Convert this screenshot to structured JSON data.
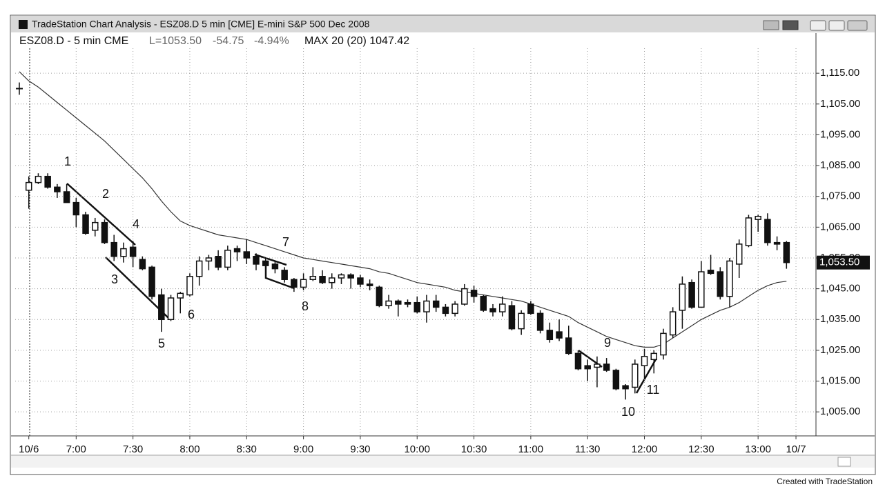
{
  "window_title": "TradeStation Chart Analysis - ESZ08.D 5 min [CME] E-mini S&P 500 Dec 2008",
  "footer": "Created with TradeStation",
  "chart_data": {
    "type": "candlestick",
    "title": "ESZ08.D - 5 min CME",
    "stats": [
      "L=1053.50",
      "-54.75",
      "-4.94%"
    ],
    "indicator": "MAX 20 (20) 1047.42",
    "categories": [
      null,
      "10/6",
      null,
      null,
      null,
      null,
      "7:00",
      null,
      null,
      null,
      null,
      null,
      "7:30",
      null,
      null,
      null,
      null,
      null,
      "8:00",
      null,
      null,
      null,
      null,
      null,
      "8:30",
      null,
      null,
      null,
      null,
      null,
      "9:00",
      null,
      null,
      null,
      null,
      null,
      "9:30",
      null,
      null,
      null,
      null,
      null,
      "10:00",
      null,
      null,
      null,
      null,
      null,
      "10:30",
      null,
      null,
      null,
      null,
      null,
      "11:00",
      null,
      null,
      null,
      null,
      null,
      "11:30",
      null,
      null,
      null,
      null,
      null,
      "12:00",
      null,
      null,
      null,
      null,
      null,
      "12:30",
      null,
      null,
      null,
      null,
      null,
      "13:00",
      null,
      null,
      null,
      "10/7"
    ],
    "open": [
      1110,
      1077,
      1079.5,
      1081.5,
      1078,
      1076.5,
      1073,
      1069,
      1064,
      1066.5,
      1060,
      1055.5,
      1058.5,
      1054.5,
      1052,
      1043,
      1035,
      1042,
      1043,
      1049,
      1054,
      1055.5,
      1052,
      1058,
      1057,
      1055.5,
      1054,
      1053,
      1051,
      1048,
      1045.5,
      1048,
      1049,
      1047,
      1048.5,
      1049.5,
      1048.5,
      1046.5,
      1045.5,
      1039.5,
      1041,
      1040.5,
      1040.5,
      1037.5,
      1041,
      1039,
      1037,
      1040,
      1044.5,
      1042.5,
      1038.5,
      1037.5,
      1039.5,
      1032,
      1040,
      1037,
      1031.5,
      1031,
      1029,
      1024,
      1020,
      1019.5,
      1020.5,
      1018.5,
      1013.5,
      1013,
      1020,
      1022,
      1023.5,
      1030,
      1038,
      1047,
      1039,
      1051,
      1050.5,
      1042.5,
      1053,
      1059,
      1067.5,
      1067.5,
      1060,
      1060,
      null
    ],
    "high": [
      1112,
      1081.5,
      1082.5,
      1082.5,
      1079,
      1079,
      1074.5,
      1070,
      1068,
      1067.5,
      1062.5,
      1060,
      1060.5,
      1055.5,
      1052.5,
      1045,
      1043,
      1044,
      1050,
      1055.5,
      1056,
      1057.5,
      1059,
      1059,
      1061,
      1056.5,
      1055,
      1054,
      1052,
      1048.5,
      1050,
      1052,
      1051,
      1050,
      1050,
      1050,
      1049.5,
      1048,
      1046,
      1043,
      1041.5,
      1041.5,
      1042.5,
      1043,
      1043,
      1040,
      1041,
      1046.5,
      1046,
      1043,
      1040,
      1042.5,
      1041,
      1038,
      1041,
      1038,
      1034,
      1035,
      1033,
      1025,
      1022,
      1023,
      1022.5,
      1019,
      1014,
      1022,
      1025.5,
      1025,
      1032,
      1039,
      1049,
      1048,
      1054,
      1056,
      1052,
      1055,
      1061,
      1069,
      1069,
      1069.5,
      1062,
      1060.5,
      null
    ],
    "low": [
      1108,
      1071,
      1079,
      1077.5,
      1074.5,
      1073,
      1065,
      1062.5,
      1062,
      1059.5,
      1054,
      1053.5,
      1052,
      1051,
      1041.5,
      1031,
      1034.5,
      1037,
      1042.5,
      1046,
      1051,
      1051,
      1051,
      1054,
      1053,
      1051,
      1052,
      1050,
      1047,
      1044,
      1044.5,
      1047.5,
      1046.5,
      1045,
      1046.5,
      1045,
      1045.5,
      1044.5,
      1039,
      1038.5,
      1036,
      1039,
      1037,
      1034,
      1037.5,
      1036,
      1036,
      1039.5,
      1040.5,
      1037.5,
      1036,
      1036,
      1031.5,
      1030,
      1036.5,
      1030.5,
      1027.5,
      1028,
      1023.5,
      1018.5,
      1015,
      1013,
      1018,
      1012,
      1009,
      1011,
      1016,
      1017.5,
      1022,
      1029,
      1032,
      1038.5,
      1039,
      1049.5,
      1041.5,
      1039,
      1048.5,
      1058.5,
      1063.5,
      1059,
      1057.5,
      1051.5,
      null
    ],
    "close": [
      1110,
      1079.5,
      1081.5,
      1078,
      1076.5,
      1073,
      1069,
      1063,
      1066.5,
      1060,
      1055.5,
      1058,
      1055.5,
      1051.5,
      1042.5,
      1035,
      1042,
      1043.5,
      1049,
      1054,
      1055,
      1052,
      1057.5,
      1057,
      1055,
      1053,
      1052.5,
      1051.5,
      1048,
      1045.5,
      1048,
      1049,
      1047,
      1048.5,
      1049.5,
      1048.5,
      1046.5,
      1046,
      1039.5,
      1041,
      1040,
      1040,
      1037.5,
      1041,
      1039,
      1037,
      1040,
      1045,
      1042.5,
      1038,
      1037.5,
      1040,
      1032,
      1037,
      1037,
      1031.5,
      1028.5,
      1029,
      1024,
      1019,
      1019,
      1020.5,
      1018.5,
      1012.5,
      1012.5,
      1020.5,
      1023,
      1024,
      1030.5,
      1037.5,
      1046.5,
      1039,
      1050.5,
      1050,
      1042.5,
      1054,
      1059.5,
      1068,
      1068.5,
      1060,
      1059.5,
      1053.5,
      null
    ],
    "ma": {
      "color": "#333333",
      "values": [
        1115.5,
        1112.5,
        1110.5,
        1108,
        1105.5,
        1103,
        1100.5,
        1098,
        1095.5,
        1093,
        1090,
        1087,
        1084,
        1081,
        1077.5,
        1073.5,
        1070,
        1067,
        1065.5,
        1064.5,
        1063.5,
        1062.5,
        1062,
        1061.5,
        1061,
        1060,
        1059,
        1058,
        1057,
        1056,
        1055,
        1054.5,
        1054,
        1053.5,
        1053,
        1052.5,
        1052,
        1051.5,
        1050.5,
        1050,
        1049,
        1048,
        1047,
        1046.5,
        1046,
        1045.5,
        1044.5,
        1044,
        1043.5,
        1043,
        1042.5,
        1042,
        1041.5,
        1041,
        1040,
        1039,
        1038,
        1037,
        1036,
        1034,
        1032.5,
        1031,
        1029.5,
        1028.5,
        1027.5,
        1026.5,
        1026,
        1026,
        1027,
        1029,
        1031,
        1033,
        1035,
        1036.5,
        1038,
        1039,
        1040.5,
        1042.5,
        1044.5,
        1046,
        1047,
        1047.42,
        null
      ]
    },
    "last_price": {
      "value": 1053.5,
      "label": "1,053.50"
    },
    "ylim": [
      997.2,
      1123.1
    ],
    "yticks": [
      {
        "value": 1005,
        "label": "1,005.00"
      },
      {
        "value": 1015,
        "label": "1,015.00"
      },
      {
        "value": 1025,
        "label": "1,025.00"
      },
      {
        "value": 1035,
        "label": "1,035.00"
      },
      {
        "value": 1045,
        "label": "1,045.00"
      },
      {
        "value": 1055,
        "label": "1,055.00"
      },
      {
        "value": 1065,
        "label": "1,065.00"
      },
      {
        "value": 1075,
        "label": "1,075.00"
      },
      {
        "value": 1085,
        "label": "1,085.00"
      },
      {
        "value": 1095,
        "label": "1,095.00"
      },
      {
        "value": 1105,
        "label": "1,105.00"
      },
      {
        "value": 1115,
        "label": "1,115.00"
      }
    ],
    "grid": true,
    "annotations": [
      "1",
      "2",
      "3",
      "4",
      "5",
      "6",
      "7",
      "8",
      "9",
      "10",
      "11"
    ]
  }
}
